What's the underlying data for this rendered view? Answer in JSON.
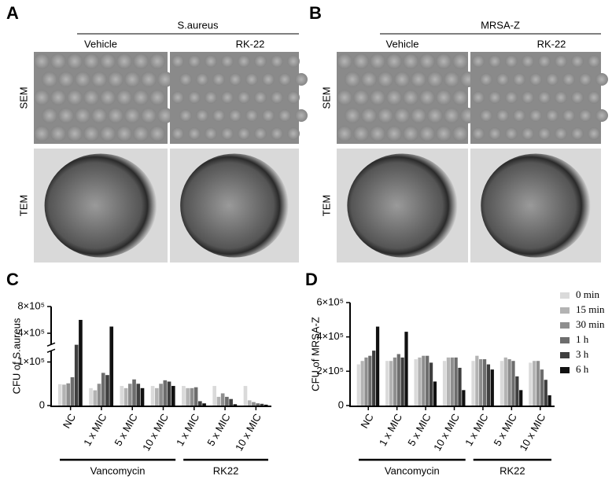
{
  "panels": [
    {
      "label": "A",
      "strain": "S.aureus",
      "columns": [
        "Vehicle",
        "RK-22"
      ],
      "rows": [
        "SEM",
        "TEM"
      ]
    },
    {
      "label": "B",
      "strain": "MRSA-Z",
      "columns": [
        "Vehicle",
        "RK-22"
      ],
      "rows": [
        "SEM",
        "TEM"
      ]
    }
  ],
  "chart_data": [
    {
      "type": "bar",
      "panel_label": "C",
      "y_label": "CFU of S.aureus",
      "axis_break": true,
      "ylim": [
        0,
        800000
      ],
      "yticks": [
        0,
        {
          "value": 100000,
          "label": "1×10⁵"
        },
        {
          "value": 400000,
          "label": "4×10⁵"
        },
        {
          "value": 800000,
          "label": "8×10⁵"
        }
      ],
      "groups": [
        {
          "name": "Vancomycin",
          "categories": [
            "NC",
            "1 x MIC",
            "5 x MIC",
            "10 x MIC"
          ]
        },
        {
          "name": "RK22",
          "categories": [
            "1 x MIC",
            "5 x MIC",
            "10 x MIC"
          ]
        }
      ],
      "series": [
        {
          "color": "#dadada",
          "values": [
            49000,
            40000,
            45000,
            45000,
            45000,
            45000,
            45000
          ]
        },
        {
          "color": "#b3b3b3",
          "values": [
            48000,
            35000,
            40000,
            40000,
            40000,
            20000,
            12000
          ]
        },
        {
          "color": "#8e8e8e",
          "values": [
            51000,
            50000,
            50000,
            50000,
            40000,
            28000,
            8000
          ]
        },
        {
          "color": "#6d6d6d",
          "values": [
            65000,
            75000,
            60000,
            58000,
            42000,
            20000,
            5000
          ]
        },
        {
          "color": "#3f3f3f",
          "values": [
            280000,
            70000,
            50000,
            55000,
            10000,
            15000,
            4000
          ]
        },
        {
          "color": "#111111",
          "values": [
            600000,
            500000,
            40000,
            45000,
            5000,
            3000,
            2000
          ]
        }
      ]
    },
    {
      "type": "bar",
      "panel_label": "D",
      "y_label": "CFU of MRSA-Z",
      "ylim": [
        0,
        600000
      ],
      "yticks": [
        0,
        {
          "value": 200000,
          "label": "2×10⁵"
        },
        {
          "value": 400000,
          "label": "4×10⁵"
        },
        {
          "value": 600000,
          "label": "6×10⁵"
        }
      ],
      "groups": [
        {
          "name": "Vancomycin",
          "categories": [
            "NC",
            "1 x MIC",
            "5 x MIC",
            "10 x MIC"
          ]
        },
        {
          "name": "RK22",
          "categories": [
            "1 x MIC",
            "5 x MIC",
            "10 x MIC"
          ]
        }
      ],
      "series": [
        {
          "name": "0 min",
          "color": "#dadada",
          "values": [
            240000,
            260000,
            270000,
            260000,
            260000,
            260000,
            250000
          ]
        },
        {
          "name": "15 min",
          "color": "#b3b3b3",
          "values": [
            260000,
            260000,
            280000,
            280000,
            290000,
            280000,
            260000
          ]
        },
        {
          "name": "30 min",
          "color": "#8e8e8e",
          "values": [
            280000,
            280000,
            290000,
            280000,
            270000,
            270000,
            260000
          ]
        },
        {
          "name": "1 h",
          "color": "#6d6d6d",
          "values": [
            290000,
            300000,
            290000,
            280000,
            270000,
            260000,
            210000
          ]
        },
        {
          "name": "3 h",
          "color": "#3f3f3f",
          "values": [
            320000,
            280000,
            250000,
            220000,
            240000,
            170000,
            150000
          ]
        },
        {
          "name": "6 h",
          "color": "#111111",
          "values": [
            460000,
            430000,
            140000,
            90000,
            210000,
            90000,
            60000
          ]
        }
      ]
    }
  ]
}
